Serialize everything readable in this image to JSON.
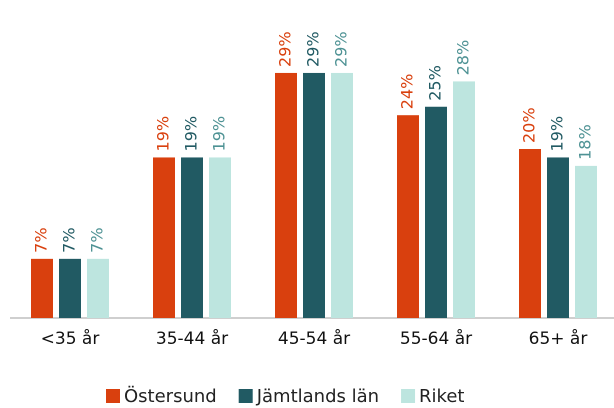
{
  "chart_data": {
    "type": "bar",
    "categories": [
      "<35 år",
      "35-44 år",
      "45-54 år",
      "55-64 år",
      "65+ år"
    ],
    "series": [
      {
        "name": "Östersund",
        "color": "#d9400e",
        "label_color": "#d9400e",
        "values": [
          7,
          19,
          29,
          24,
          20
        ],
        "value_labels": [
          "7%",
          "19%",
          "29%",
          "24%",
          "20%"
        ]
      },
      {
        "name": "Jämtlands län",
        "color": "#215a63",
        "label_color": "#215a63",
        "values": [
          7,
          19,
          29,
          25,
          19
        ],
        "value_labels": [
          "7%",
          "19%",
          "29%",
          "25%",
          "19%"
        ]
      },
      {
        "name": "Riket",
        "color": "#bde5df",
        "label_color": "#4e9294",
        "values": [
          7,
          19,
          29,
          28,
          18
        ],
        "value_labels": [
          "7%",
          "19%",
          "29%",
          "28%",
          "18%"
        ]
      }
    ],
    "legend": "bottom"
  }
}
